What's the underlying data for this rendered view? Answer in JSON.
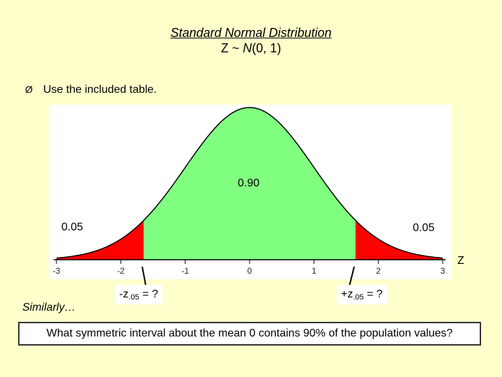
{
  "slide": {
    "title_line1": "Standard Normal Distribution",
    "title_line2_prefix": "Z ~ ",
    "title_line2_n": "N",
    "title_line2_suffix": "(0, 1)",
    "bullet_marker": "Ø",
    "bullet_text": "Use the included table.",
    "center_area_label": "0.90",
    "left_tail_label": "0.05",
    "right_tail_label": "0.05",
    "axis_variable": "Z",
    "left_critical_prefix": "-z",
    "left_critical_sub": ".05",
    "left_critical_suffix": " = ?",
    "right_critical_prefix": "+z",
    "right_critical_sub": ".05",
    "right_critical_suffix": " = ?",
    "similarly_text": "Similarly…",
    "question_text": "What symmetric interval about the mean 0 contains 90% of the population values?"
  },
  "chart_data": {
    "type": "area",
    "distribution": "standard-normal",
    "mean": 0,
    "sd": 1,
    "x_ticks": [
      "-3",
      "-2",
      "-1",
      "0",
      "1",
      "2",
      "3"
    ],
    "xlim": [
      -3,
      3
    ],
    "regions": [
      {
        "from": -3,
        "to": -1.645,
        "area": 0.05,
        "color": "#FF0000"
      },
      {
        "from": -1.645,
        "to": 1.645,
        "area": 0.9,
        "color": "#80FF80"
      },
      {
        "from": 1.645,
        "to": 3,
        "area": 0.05,
        "color": "#FF0000"
      }
    ],
    "colors": {
      "tail": "#FF0000",
      "center": "#80FF80",
      "background": "#FFFFCC"
    }
  }
}
